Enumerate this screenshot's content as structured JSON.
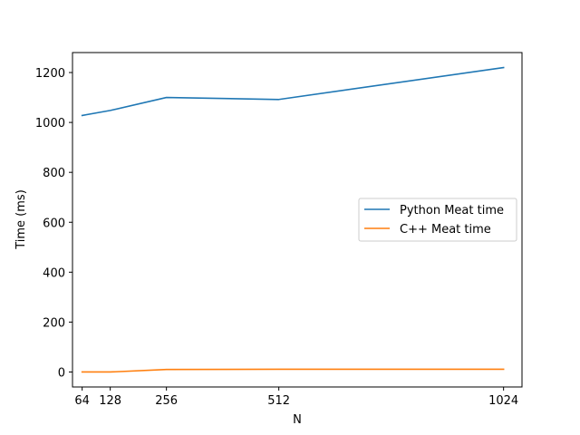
{
  "chart_data": {
    "type": "line",
    "title": "",
    "xlabel": "N",
    "ylabel": "Time (ms)",
    "x": [
      64,
      128,
      256,
      512,
      1024
    ],
    "x_ticks": [
      "64",
      "128",
      "256",
      "512",
      "1024"
    ],
    "y_ticks": [
      "0",
      "200",
      "400",
      "600",
      "800",
      "1000",
      "1200"
    ],
    "xlim": [
      42,
      1066
    ],
    "ylim": [
      -60,
      1280
    ],
    "series": [
      {
        "name": "Python Meat time",
        "color": "#1f77b4",
        "values": [
          1028,
          1048,
          1100,
          1092,
          1220
        ]
      },
      {
        "name": "C++ Meat time",
        "color": "#ff7f0e",
        "values": [
          0,
          0,
          10,
          11,
          11
        ]
      }
    ],
    "grid": false,
    "legend_position": "center-right"
  }
}
